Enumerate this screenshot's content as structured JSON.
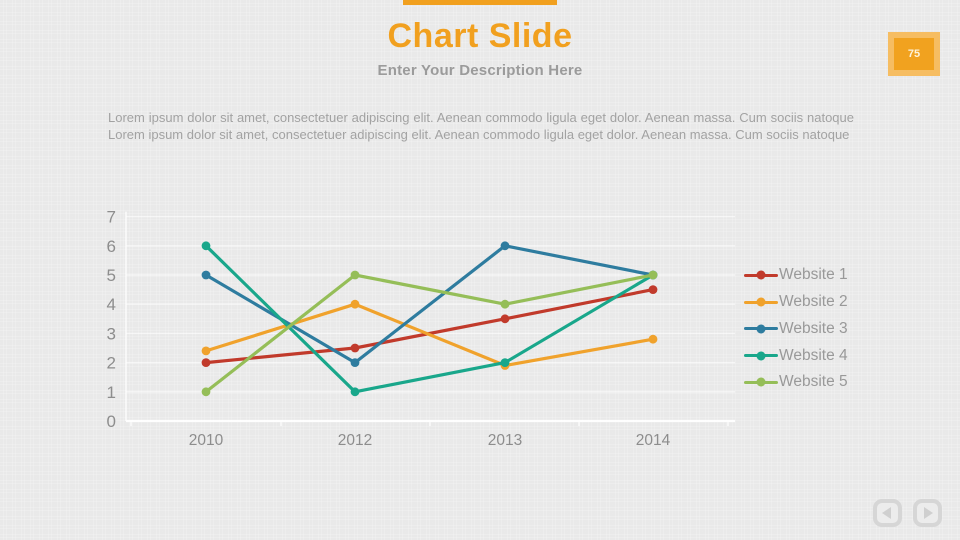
{
  "slide": {
    "title": "Chart Slide",
    "subtitle": "Enter Your Description Here",
    "page_number": "75",
    "body_text": "Lorem ipsum dolor sit amet, consectetuer adipiscing elit. Aenean commodo ligula eget dolor. Aenean massa. Cum sociis natoque Lorem ipsum dolor sit amet, consectetuer adipiscing elit. Aenean commodo ligula eget dolor. Aenean massa. Cum sociis natoque"
  },
  "colors": {
    "accent": "#f1a01f",
    "badge_outer": "#f6bd62",
    "badge_inner": "#f1a21f",
    "grid_line": "#ffffff",
    "axis_text": "#8d8d8d",
    "legend_text": "#999999",
    "subtitle_text": "#9b9b9b",
    "body_text_color": "#a2a2a2"
  },
  "chart_data": {
    "type": "line",
    "title": "",
    "xlabel": "",
    "ylabel": "",
    "categories": [
      "2010",
      "2012",
      "2013",
      "2014"
    ],
    "series": [
      {
        "name": "Website 1",
        "color": "#c13a2b",
        "values": [
          2,
          2.5,
          3.5,
          4.5
        ]
      },
      {
        "name": "Website 2",
        "color": "#f0a22c",
        "values": [
          2.4,
          4,
          1.9,
          2.8
        ]
      },
      {
        "name": "Website 3",
        "color": "#2e7c9f",
        "values": [
          5,
          2,
          6,
          5
        ]
      },
      {
        "name": "Website 4",
        "color": "#19a78b",
        "values": [
          6,
          1,
          2,
          5
        ]
      },
      {
        "name": "Website 5",
        "color": "#95be58",
        "values": [
          1,
          5,
          4,
          5
        ]
      }
    ],
    "ylim": [
      0,
      7
    ],
    "ytick_step": 1,
    "grid": true,
    "legend_position": "right"
  },
  "nav": {
    "prev_icon": "left-arrow",
    "next_icon": "right-arrow"
  }
}
